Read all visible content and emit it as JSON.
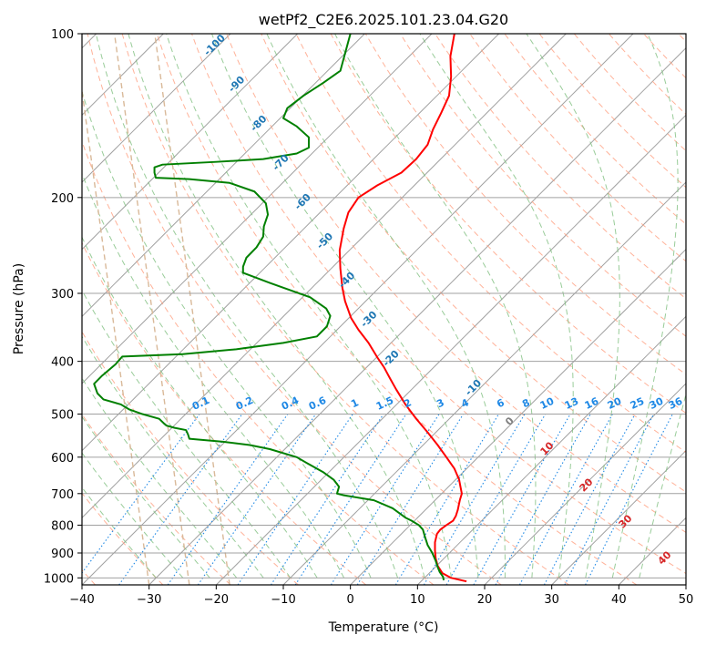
{
  "chart_data": {
    "type": "line",
    "title": "wetPf2_C2E6.2025.101.23.04.G20",
    "xlabel": "Temperature (°C)",
    "ylabel": "Pressure (hPa)",
    "xlim": [
      -40,
      50
    ],
    "ylim": [
      1030,
      100
    ],
    "y_scale": "log",
    "x_ticks": [
      -40,
      -30,
      -20,
      -10,
      0,
      10,
      20,
      30,
      40,
      50
    ],
    "y_ticks": [
      100,
      200,
      300,
      400,
      500,
      600,
      700,
      800,
      900,
      1000
    ],
    "grid": true,
    "colors": {
      "temperature": "#ff0000",
      "dewpoint": "#008000",
      "isotherm": "#a0a0a0",
      "dry_adiabat": "#ff9f80",
      "moist_adiabat": "#7fbf7f",
      "mixing_ratio": "#1f77b4",
      "wetbulb_zero": "#d9b999"
    },
    "series": [
      {
        "key": "temperature",
        "points": [
          [
            17.3,
            1015
          ],
          [
            15.0,
            1000
          ],
          [
            13.7,
            980
          ],
          [
            13.0,
            950
          ],
          [
            12.7,
            920
          ],
          [
            12.6,
            890
          ],
          [
            12.6,
            860
          ],
          [
            12.9,
            830
          ],
          [
            13.4,
            815
          ],
          [
            14.3,
            800
          ],
          [
            15.3,
            785
          ],
          [
            15.7,
            770
          ],
          [
            16.0,
            750
          ],
          [
            16.3,
            720
          ],
          [
            16.6,
            700
          ],
          [
            16.4,
            680
          ],
          [
            16.2,
            660
          ],
          [
            15.5,
            630
          ],
          [
            14.3,
            600
          ],
          [
            13.0,
            570
          ],
          [
            11.5,
            540
          ],
          [
            9.8,
            510
          ],
          [
            8.2,
            480
          ],
          [
            6.8,
            450
          ],
          [
            5.9,
            430
          ],
          [
            5.0,
            410
          ],
          [
            4.1,
            395
          ],
          [
            2.7,
            370
          ],
          [
            1.2,
            350
          ],
          [
            0.1,
            333
          ],
          [
            -0.8,
            310
          ],
          [
            -1.2,
            293
          ],
          [
            -1.5,
            270
          ],
          [
            -1.6,
            250
          ],
          [
            -1.0,
            228
          ],
          [
            -0.3,
            213
          ],
          [
            1.2,
            200
          ],
          [
            4.0,
            190
          ],
          [
            7.6,
            180
          ],
          [
            9.8,
            170
          ],
          [
            11.5,
            160
          ],
          [
            12.3,
            150
          ],
          [
            13.5,
            140
          ],
          [
            14.7,
            130
          ],
          [
            15.0,
            120
          ],
          [
            14.9,
            110
          ],
          [
            15.5,
            100
          ]
        ]
      },
      {
        "key": "dewpoint",
        "points": [
          [
            13.9,
            1010
          ],
          [
            13.8,
            995
          ],
          [
            13.3,
            975
          ],
          [
            13.0,
            955
          ],
          [
            12.7,
            930
          ],
          [
            12.2,
            900
          ],
          [
            11.5,
            870
          ],
          [
            11.1,
            840
          ],
          [
            10.8,
            815
          ],
          [
            10.2,
            800
          ],
          [
            9.1,
            785
          ],
          [
            8.2,
            775
          ],
          [
            6.3,
            745
          ],
          [
            3.5,
            720
          ],
          [
            -1.0,
            705
          ],
          [
            -2.0,
            700
          ],
          [
            -1.7,
            680
          ],
          [
            -2.5,
            660
          ],
          [
            -4.0,
            640
          ],
          [
            -6.5,
            615
          ],
          [
            -8.0,
            600
          ],
          [
            -12.0,
            580
          ],
          [
            -15.0,
            570
          ],
          [
            -19.0,
            562
          ],
          [
            -24.0,
            555
          ],
          [
            -24.2,
            545
          ],
          [
            -24.5,
            535
          ],
          [
            -26.2,
            530
          ],
          [
            -27.4,
            525
          ],
          [
            -27.8,
            520
          ],
          [
            -28.5,
            510
          ],
          [
            -31.0,
            500
          ],
          [
            -33.0,
            490
          ],
          [
            -34.2,
            480
          ],
          [
            -36.8,
            470
          ],
          [
            -37.7,
            458
          ],
          [
            -38.2,
            440
          ],
          [
            -37.0,
            425
          ],
          [
            -35.0,
            405
          ],
          [
            -34.0,
            392
          ],
          [
            -25.0,
            388
          ],
          [
            -17.0,
            380
          ],
          [
            -10.0,
            370
          ],
          [
            -5.0,
            360
          ],
          [
            -3.5,
            345
          ],
          [
            -3.0,
            330
          ],
          [
            -3.6,
            320
          ],
          [
            -6.0,
            305
          ],
          [
            -12.0,
            287
          ],
          [
            -16.0,
            275
          ],
          [
            -16.0,
            268
          ],
          [
            -15.5,
            258
          ],
          [
            -14.0,
            247
          ],
          [
            -13.0,
            236
          ],
          [
            -12.9,
            226
          ],
          [
            -12.3,
            215
          ],
          [
            -12.6,
            205
          ],
          [
            -14.3,
            195
          ],
          [
            -18.0,
            188
          ],
          [
            -24.0,
            185
          ],
          [
            -29.0,
            184
          ],
          [
            -29.2,
            180
          ],
          [
            -29.2,
            176
          ],
          [
            -28.0,
            174
          ],
          [
            -20.0,
            172
          ],
          [
            -13.0,
            170
          ],
          [
            -8.0,
            166
          ],
          [
            -6.2,
            162
          ],
          [
            -6.2,
            155
          ],
          [
            -8.0,
            148
          ],
          [
            -10.0,
            143
          ],
          [
            -9.4,
            137
          ],
          [
            -7.0,
            130
          ],
          [
            -4.0,
            123
          ],
          [
            -1.5,
            117
          ],
          [
            0.0,
            100
          ]
        ]
      }
    ],
    "dry_adiabat_labels": [
      "-100",
      "-90",
      "-80",
      "-70",
      "-60",
      "-50",
      "-40",
      "-30",
      "-20",
      "-10",
      "0",
      "10",
      "20",
      "30",
      "40"
    ],
    "mixing_ratio_labels": [
      "0.1",
      "0.2",
      "0.4",
      "0.6",
      "1",
      "1.5",
      "2",
      "3",
      "4",
      "6",
      "8",
      "10",
      "13",
      "16",
      "20",
      "25",
      "30",
      "36"
    ]
  }
}
